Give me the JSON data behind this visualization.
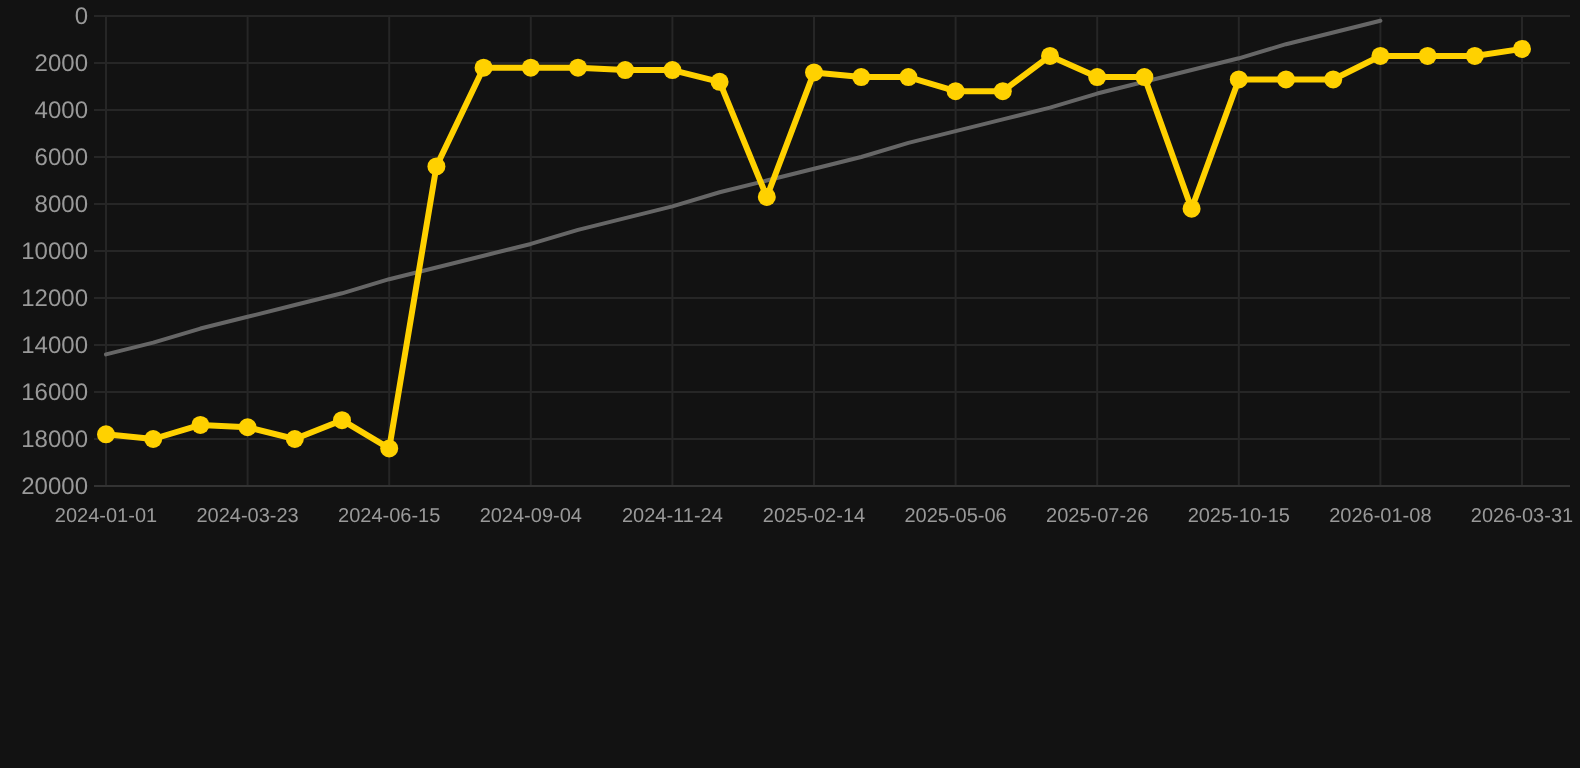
{
  "chart_data": {
    "type": "line",
    "categories": [
      "2024-01-01",
      null,
      null,
      "2024-03-23",
      null,
      null,
      "2024-06-15",
      null,
      null,
      "2024-09-04",
      null,
      null,
      "2024-11-24",
      null,
      null,
      "2025-02-14",
      null,
      null,
      "2025-05-06",
      null,
      null,
      "2025-07-26",
      null,
      null,
      "2025-10-15",
      null,
      null,
      "2026-01-08",
      null,
      null,
      "2026-03-31"
    ],
    "series": [
      {
        "color": "#ffd100",
        "marker": "circle",
        "values": [
          17800,
          18000,
          17400,
          17500,
          18000,
          17200,
          18400,
          6400,
          2200,
          2200,
          2200,
          2300,
          2300,
          2800,
          7700,
          2400,
          2600,
          2600,
          3200,
          3200,
          1700,
          2600,
          2600,
          8200,
          2700,
          2700,
          2700,
          1700,
          1700,
          1700,
          1400
        ]
      },
      {
        "type": "line",
        "color": "#666666",
        "marker": "none",
        "values": [
          14400,
          13900,
          13300,
          12800,
          12300,
          11800,
          11200,
          10700,
          10200,
          9700,
          9100,
          8600,
          8100,
          7500,
          7000,
          6500,
          6000,
          5400,
          4900,
          4400,
          3900,
          3300,
          2800,
          2300,
          1800,
          1200,
          700,
          200,
          null,
          null,
          null
        ]
      }
    ],
    "ylim": [
      20000,
      0
    ],
    "yticks": [
      0,
      2000,
      4000,
      6000,
      8000,
      10000,
      12000,
      14000,
      16000,
      18000,
      20000
    ],
    "grid": true
  }
}
